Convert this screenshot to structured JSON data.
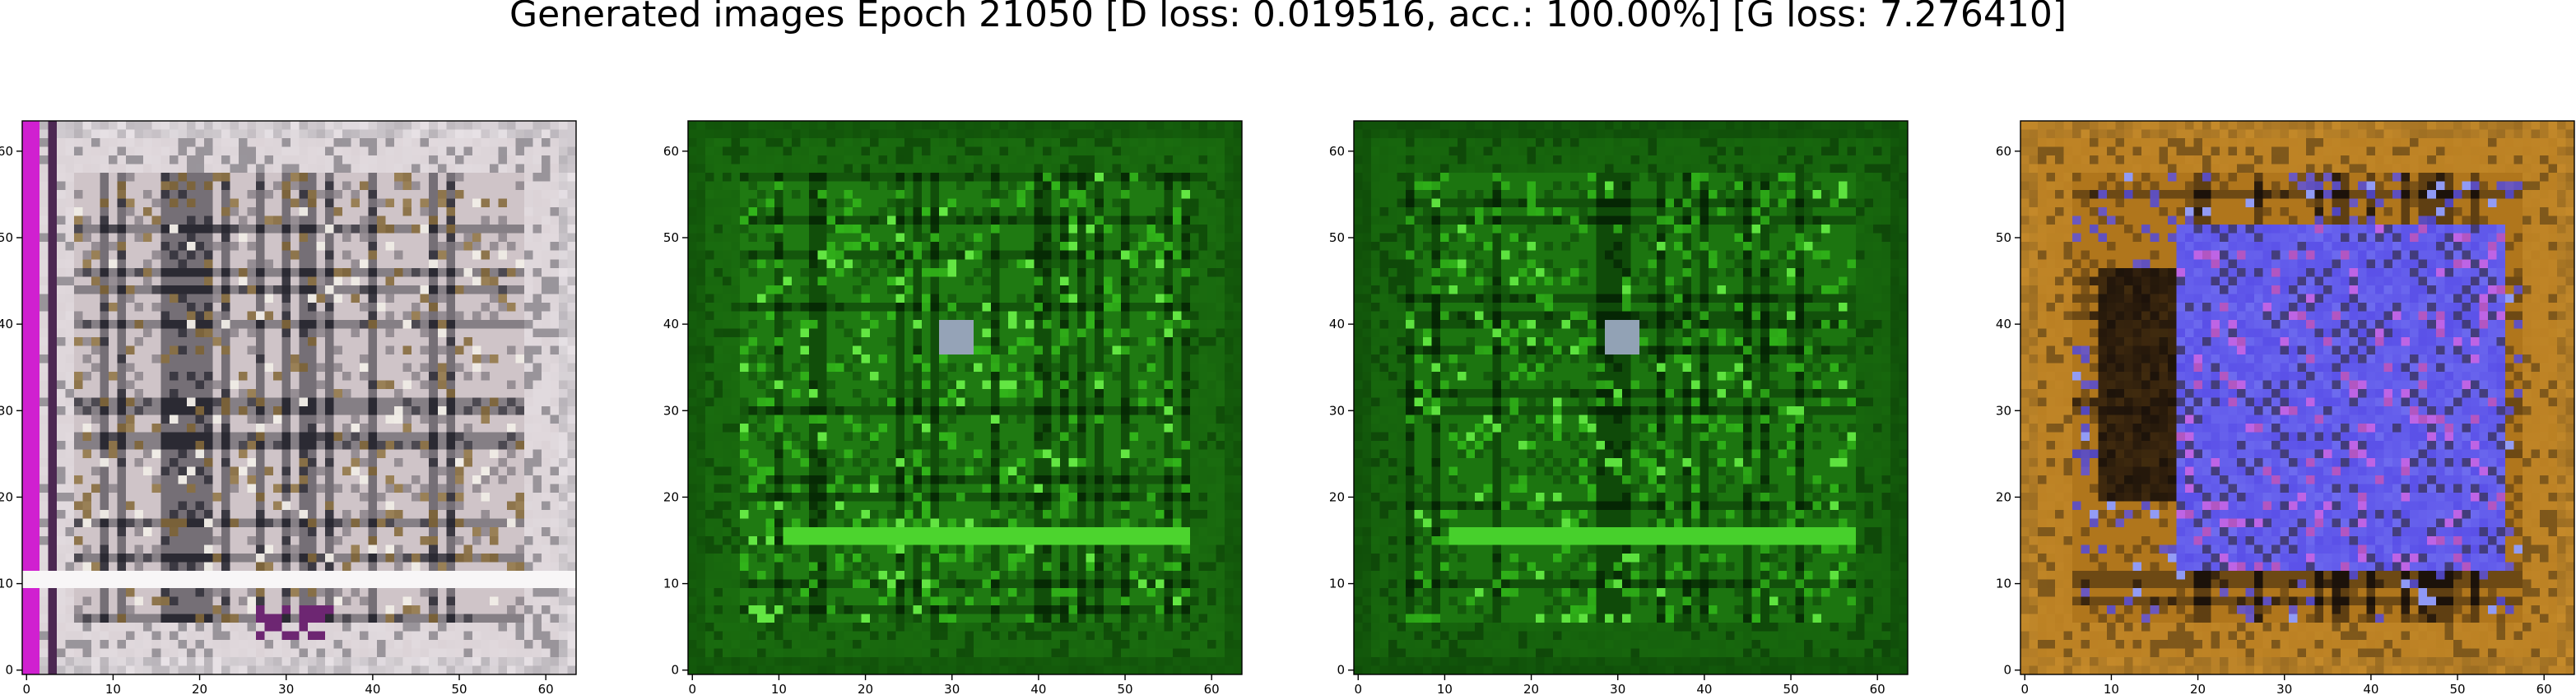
{
  "figure": {
    "title": "Generated images Epoch 21050 [D loss: 0.019516, acc.: 100.00%] [G loss: 7.276410]"
  },
  "chart_data": {
    "type": "image-grid",
    "title": "Generated images Epoch 21050 [D loss: 0.019516, acc.: 100.00%] [G loss: 7.276410]",
    "epoch": 21050,
    "d_loss": 0.019516,
    "accuracy_percent": 100.0,
    "g_loss": 7.27641,
    "image_resolution": [
      64,
      64
    ],
    "xlim": [
      -0.5,
      63.5
    ],
    "ylim": [
      63.5,
      -0.5
    ],
    "xticks": [
      0,
      10,
      20,
      30,
      40,
      50,
      60
    ],
    "yticks": [
      0,
      10,
      20,
      30,
      40,
      50,
      60
    ],
    "xtick_labels": [
      "0",
      "10",
      "20",
      "30",
      "40",
      "50",
      "60"
    ],
    "ytick_labels": [
      "0",
      "10",
      "20",
      "30",
      "40",
      "50",
      "60"
    ],
    "panels": [
      {
        "index": 1,
        "palette": {
          "background": "#cfc4c8",
          "dark": "#2b2a33",
          "accent": "#8c6f3a",
          "highlight": "#ffffff",
          "edge": "#d020d0",
          "frame": "#e8e2e6"
        }
      },
      {
        "index": 2,
        "palette": {
          "background": "#1f7a12",
          "dark": "#062a04",
          "accent": "#36c21c",
          "highlight": "#6cf04a",
          "edge": "#0e4a08",
          "frame": "#155f0c"
        }
      },
      {
        "index": 3,
        "palette": {
          "background": "#1c7510",
          "dark": "#052604",
          "accent": "#33bd1a",
          "highlight": "#66ec46",
          "edge": "#0c4607",
          "frame": "#135a0b"
        }
      },
      {
        "index": 4,
        "palette": {
          "background": "#b0761c",
          "dark": "#1c120a",
          "accent": "#5a50e8",
          "highlight": "#9aa8ff",
          "edge": "#7a5010",
          "frame": "#c58a2a"
        }
      }
    ]
  }
}
